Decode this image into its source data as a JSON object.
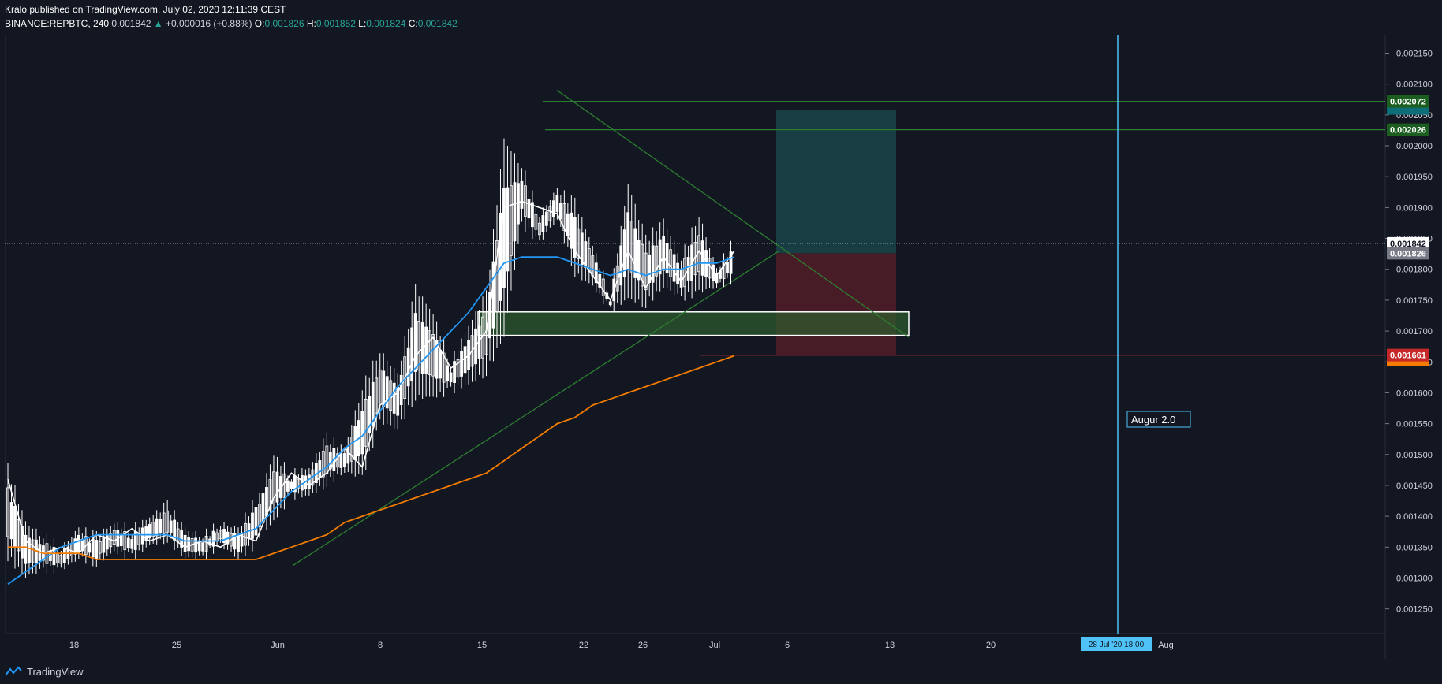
{
  "header": {
    "publish_line": "Kralo published on TradingView.com, July 02, 2020 12:11:39 CEST",
    "symbol": "BINANCE:REPBTC, 240",
    "last": "0.001842",
    "change": "+0.000016 (+0.88%)",
    "o_label": "O:",
    "o_value": "0.001826",
    "h_label": "H:",
    "h_value": "0.001852",
    "l_label": "L:",
    "l_value": "0.001824",
    "c_label": "C:",
    "c_value": "0.001842"
  },
  "footer": {
    "brand": "TradingView"
  },
  "colors": {
    "background": "#131722",
    "candle": "#ffffff",
    "ma_fast": "#ffffff",
    "ma_mid": "#2196f3",
    "ma_slow": "#f57c00",
    "trend": "#2e7d32",
    "stop": "#e53935",
    "vline": "#4fc3f7"
  },
  "chart_data": {
    "type": "candlestick",
    "symbol": "BINANCE:REPBTC",
    "interval": "240",
    "x_tick_labels": [
      "18",
      "25",
      "Jun",
      "8",
      "15",
      "22",
      "26",
      "Jul",
      "6",
      "13",
      "20",
      "Aug"
    ],
    "y_tick_labels": [
      "0.002150",
      "0.002100",
      "0.002050",
      "0.002000",
      "0.001950",
      "0.001900",
      "0.001850",
      "0.001800",
      "0.001750",
      "0.001700",
      "0.001650",
      "0.001600",
      "0.001550",
      "0.001500",
      "0.001450",
      "0.001400",
      "0.001350",
      "0.001300",
      "0.001250"
    ],
    "ylim": [
      0.00121,
      0.00218
    ],
    "price_series": [
      [
        0.00147,
        0.00134
      ],
      [
        0.00138,
        0.00131
      ],
      [
        0.00136,
        0.00132
      ],
      [
        0.00134,
        0.00132
      ],
      [
        0.00137,
        0.00134
      ],
      [
        0.00136,
        0.00133
      ],
      [
        0.00138,
        0.00135
      ],
      [
        0.00137,
        0.00134
      ],
      [
        0.00139,
        0.00136
      ],
      [
        0.00141,
        0.00137
      ],
      [
        0.00137,
        0.00134
      ],
      [
        0.00136,
        0.00134
      ],
      [
        0.00138,
        0.00136
      ],
      [
        0.00137,
        0.00134
      ],
      [
        0.00142,
        0.00136
      ],
      [
        0.00149,
        0.0014
      ],
      [
        0.00146,
        0.00144
      ],
      [
        0.00147,
        0.00144
      ],
      [
        0.00152,
        0.00146
      ],
      [
        0.0015,
        0.00148
      ],
      [
        0.0016,
        0.00147
      ],
      [
        0.00166,
        0.00156
      ],
      [
        0.00162,
        0.00155
      ],
      [
        0.00176,
        0.0016
      ],
      [
        0.00172,
        0.0016
      ],
      [
        0.00164,
        0.00161
      ],
      [
        0.0017,
        0.00162
      ],
      [
        0.00175,
        0.00164
      ],
      [
        0.002,
        0.0017
      ],
      [
        0.00196,
        0.00188
      ],
      [
        0.00188,
        0.00185
      ],
      [
        0.00192,
        0.00189
      ],
      [
        0.0019,
        0.0018
      ],
      [
        0.00183,
        0.00178
      ],
      [
        0.00175,
        0.00174
      ],
      [
        0.00193,
        0.00176
      ],
      [
        0.00184,
        0.00175
      ],
      [
        0.00187,
        0.00178
      ],
      [
        0.00181,
        0.00176
      ],
      [
        0.00188,
        0.00177
      ],
      [
        0.00179,
        0.00178
      ],
      [
        0.00184,
        0.00179
      ]
    ],
    "moving_averages": [
      {
        "color": "#ffffff",
        "values": [
          0.00146,
          0.00136,
          0.00134,
          0.00135,
          0.00134,
          0.00137,
          0.00136,
          0.00138,
          0.00136,
          0.00137,
          0.00135,
          0.00136,
          0.00135,
          0.00137,
          0.00136,
          0.00143,
          0.00147,
          0.00145,
          0.00147,
          0.00151,
          0.00148,
          0.00158,
          0.0016,
          0.00166,
          0.00169,
          0.00164,
          0.00166,
          0.0017,
          0.0019,
          0.00191,
          0.0019,
          0.00189,
          0.00183,
          0.00179,
          0.00175,
          0.00183,
          0.00177,
          0.00182,
          0.00178,
          0.00183,
          0.00179,
          0.00183
        ]
      },
      {
        "color": "#2196f3",
        "values": [
          0.00129,
          0.00131,
          0.00133,
          0.00135,
          0.00136,
          0.00137,
          0.00137,
          0.00137,
          0.00137,
          0.00137,
          0.00136,
          0.00136,
          0.00136,
          0.00137,
          0.00138,
          0.00141,
          0.00144,
          0.00146,
          0.00148,
          0.00151,
          0.00153,
          0.00157,
          0.00161,
          0.00164,
          0.00167,
          0.0017,
          0.00173,
          0.00177,
          0.00181,
          0.00182,
          0.00182,
          0.00182,
          0.00181,
          0.0018,
          0.00179,
          0.0018,
          0.00179,
          0.0018,
          0.0018,
          0.00181,
          0.00181,
          0.00182
        ]
      },
      {
        "color": "#f57c00",
        "values": [
          0.00135,
          0.00135,
          0.00134,
          0.00134,
          0.00134,
          0.00133,
          0.00133,
          0.00133,
          0.00133,
          0.00133,
          0.00133,
          0.00133,
          0.00133,
          0.00133,
          0.00133,
          0.00134,
          0.00135,
          0.00136,
          0.00137,
          0.00139,
          0.0014,
          0.00141,
          0.00142,
          0.00143,
          0.00144,
          0.00145,
          0.00146,
          0.00147,
          0.00149,
          0.00151,
          0.00153,
          0.00155,
          0.00156,
          0.00158,
          0.00159,
          0.0016,
          0.00161,
          0.00162,
          0.00163,
          0.00164,
          0.00165,
          0.00166
        ]
      }
    ],
    "horizontal_levels": [
      {
        "price": 0.002072,
        "label": "0.002072",
        "color": "#2e7d32"
      },
      {
        "price": 0.002026,
        "label": "0.002026",
        "color": "#2e7d32"
      },
      {
        "price": 0.001661,
        "label": "0.001661",
        "color": "#e53935"
      }
    ],
    "price_tags": [
      {
        "price": 0.001842,
        "label": "0.001842",
        "style": "last"
      },
      {
        "price": 0.001826,
        "label": "0.001826",
        "style": "gray"
      }
    ],
    "position_box": {
      "entry": 0.001826,
      "target": 0.002058,
      "stop": 0.001661,
      "profit_color": "#1b4b4f",
      "loss_color": "#5a1f2a"
    },
    "demand_zone": {
      "low": 0.001693,
      "high": 0.001731,
      "color": "#2e5c2e"
    },
    "annotations": [
      {
        "text": "Augur 2.0",
        "style": "label-box"
      },
      {
        "text": "28 Jul '20   18:00",
        "style": "x-marker"
      }
    ],
    "grid": false
  }
}
